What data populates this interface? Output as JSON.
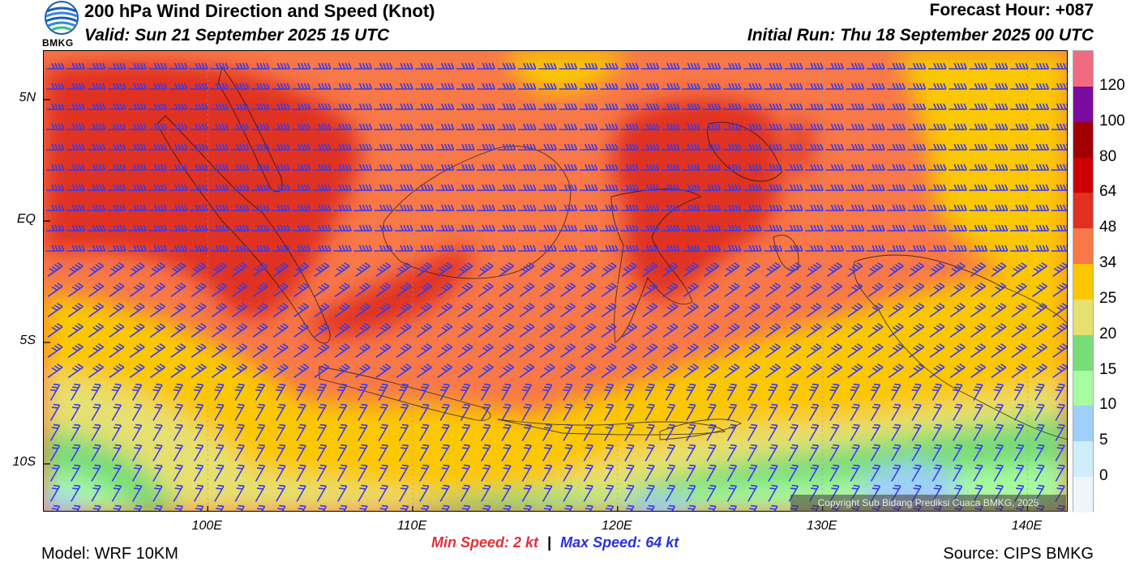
{
  "header": {
    "title": "200 hPa Wind Direction and Speed (Knot)",
    "valid": "Valid: Sun 21 September 2025 15 UTC",
    "forecast_hour": "Forecast Hour: +087",
    "initial_run": "Initial Run: Thu 18 September 2025 00 UTC",
    "logo_text": "BMKG"
  },
  "map": {
    "lat_labels": [
      {
        "label": "5N",
        "lat": 5
      },
      {
        "label": "EQ",
        "lat": 0
      },
      {
        "label": "5S",
        "lat": -5
      },
      {
        "label": "10S",
        "lat": -10
      }
    ],
    "lon_labels": [
      {
        "label": "100E",
        "lon": 100
      },
      {
        "label": "110E",
        "lon": 110
      },
      {
        "label": "120E",
        "lon": 120
      },
      {
        "label": "130E",
        "lon": 130
      },
      {
        "label": "140E",
        "lon": 140
      }
    ],
    "lon_range": [
      92,
      142
    ],
    "lat_range": [
      -12,
      7
    ],
    "copyright": "Copyright Sub Bidang Prediksi Cuaca BMKG, 2025",
    "barb_color": "#3a3ae8"
  },
  "colorbar": {
    "labels": [
      "120",
      "100",
      "80",
      "64",
      "48",
      "34",
      "25",
      "20",
      "15",
      "10",
      "5",
      "0"
    ],
    "colors": [
      "#f06a80",
      "#7a0aa0",
      "#a00000",
      "#cc0000",
      "#e03020",
      "#f87848",
      "#fbc800",
      "#e6e070",
      "#78dc78",
      "#a8fca0",
      "#9ed0fa",
      "#cfeefc",
      "#eef6fc"
    ]
  },
  "footer": {
    "min_label": "Min Speed:",
    "min_value": "2 kt",
    "separator": "|",
    "max_label": "Max Speed:",
    "max_value": "64 kt",
    "model": "Model: WRF 10KM",
    "source": "Source: CIPS BMKG"
  }
}
